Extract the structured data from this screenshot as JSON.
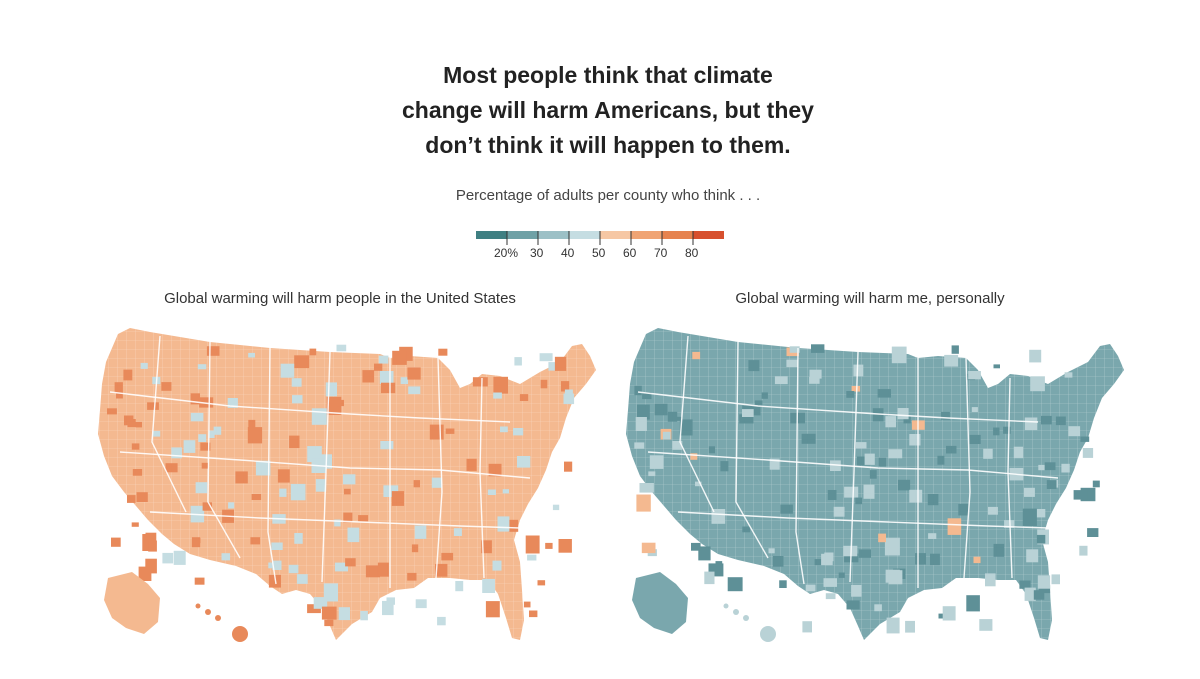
{
  "headline": {
    "line1": "Most people think that climate",
    "line2": "change will harm Americans, but they",
    "line3": "don’t think it will happen to them."
  },
  "subtitle": "Percentage of adults per county who think . . .",
  "legend": {
    "colors": [
      "#3f7f82",
      "#6fa1a6",
      "#9cc0c6",
      "#c5dde2",
      "#f6c7a4",
      "#f0a474",
      "#e6834f",
      "#d7502e"
    ],
    "ticks": [
      "20%",
      "30",
      "40",
      "50",
      "60",
      "70",
      "80"
    ]
  },
  "maps": {
    "left": {
      "title": "Global warming will harm people in the United States",
      "base_color": "#f4b990",
      "dark_color": "#e8895a",
      "light_color": "#c5dde2"
    },
    "right": {
      "title": "Global warming will harm me, personally",
      "base_color": "#7aa7ad",
      "dark_color": "#5e9097",
      "light_color": "#b9d2d6",
      "orange_color": "#f4b990"
    }
  }
}
